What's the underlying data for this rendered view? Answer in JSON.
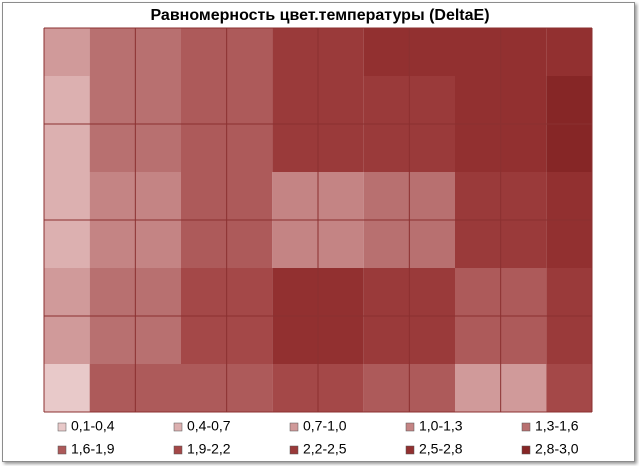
{
  "chart_data": {
    "type": "contour",
    "title": "Равномерность цвет.температуры (DeltaE)",
    "z": [
      [
        0.8,
        1.3,
        1.6,
        2.4,
        2.5,
        2.6,
        2.7
      ],
      [
        0.6,
        1.3,
        1.7,
        2.3,
        2.3,
        2.5,
        2.9
      ],
      [
        0.6,
        1.1,
        1.6,
        1.0,
        1.4,
        2.3,
        2.6
      ],
      [
        0.7,
        1.4,
        1.9,
        2.7,
        2.2,
        1.6,
        2.3
      ],
      [
        0.2,
        1.7,
        1.8,
        2.0,
        1.8,
        0.7,
        2.0
      ]
    ],
    "levels": [
      0.1,
      0.4,
      0.7,
      1.0,
      1.3,
      1.6,
      1.9,
      2.2,
      2.5,
      2.8,
      3.0
    ],
    "series": [
      {
        "name": "0,1-0,4",
        "color": "#e8c9c9"
      },
      {
        "name": "0,4-0,7",
        "color": "#dcb0b0"
      },
      {
        "name": "0,7-1,0",
        "color": "#d09a9a"
      },
      {
        "name": "1,0-1,3",
        "color": "#c48484"
      },
      {
        "name": "1,3-1,6",
        "color": "#b87070"
      },
      {
        "name": "1,6-1,9",
        "color": "#ad5a5a"
      },
      {
        "name": "1,9-2,2",
        "color": "#a44848"
      },
      {
        "name": "2,2-2,5",
        "color": "#9a3a3a"
      },
      {
        "name": "2,5-2,8",
        "color": "#923030"
      },
      {
        "name": "2,8-3,0",
        "color": "#862626"
      }
    ],
    "grid_color": "#8b3030"
  }
}
